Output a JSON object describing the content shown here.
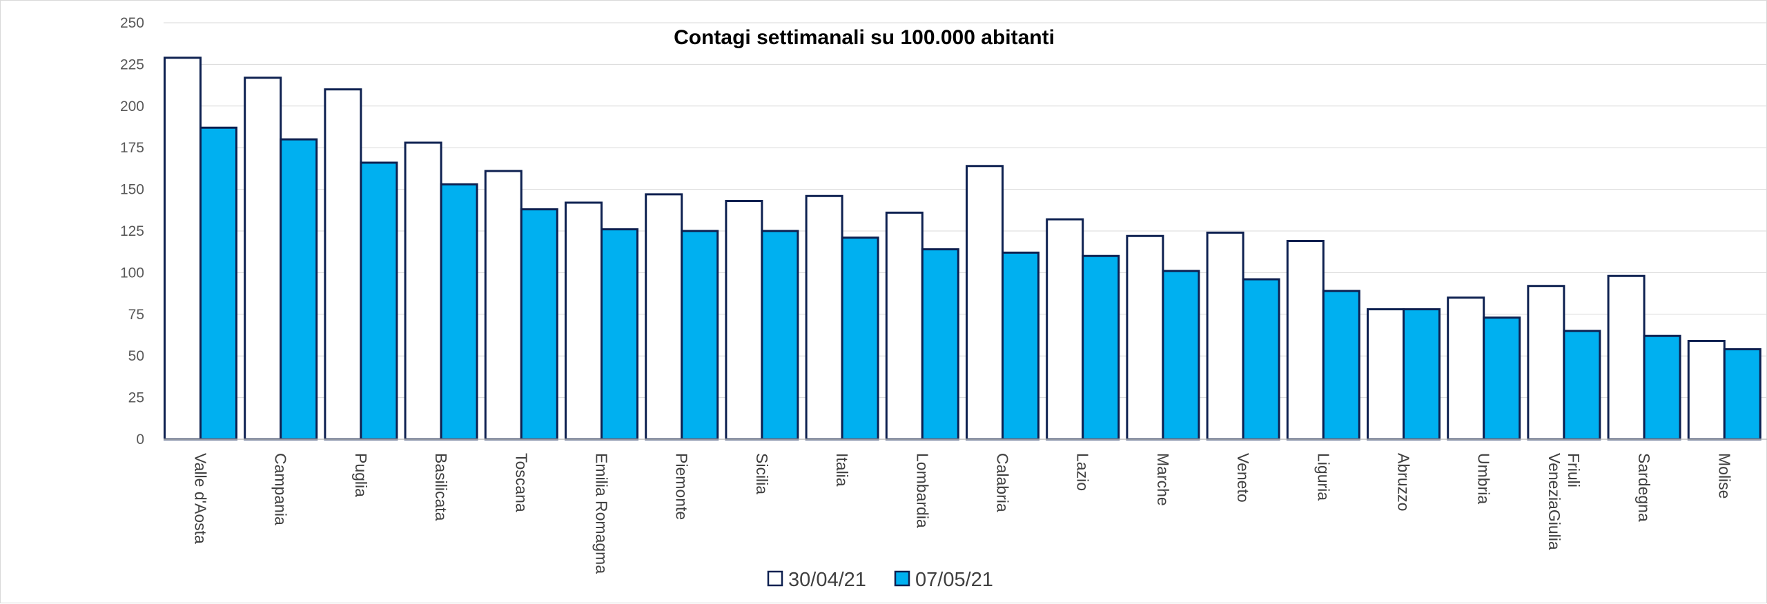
{
  "chart_data": {
    "type": "bar",
    "title": "Contagi settimanali su 100.000 abitanti",
    "xlabel": "",
    "ylabel": "",
    "ylim": [
      0,
      250
    ],
    "yticks": [
      0,
      25,
      50,
      75,
      100,
      125,
      150,
      175,
      200,
      225,
      250
    ],
    "grid": true,
    "legend_position": "bottom",
    "categories": [
      "Valle d'Aosta",
      "Campania",
      "Puglia",
      "Basilicata",
      "Toscana",
      "Emilia Romagma",
      "Piemonte",
      "Sicilia",
      "Italia",
      "Lombardia",
      "Calabria",
      "Lazio",
      "Marche",
      "Veneto",
      "Liguria",
      "Abruzzo",
      "Umbria",
      "Friuli VeneziaGiulia",
      "Sardegna",
      "Molise"
    ],
    "series": [
      {
        "name": "30/04/21",
        "color": "#ffffff",
        "border": "#0d2050",
        "values": [
          229,
          217,
          210,
          178,
          161,
          142,
          147,
          143,
          146,
          136,
          164,
          132,
          122,
          124,
          119,
          78,
          85,
          92,
          98,
          59
        ]
      },
      {
        "name": "07/05/21",
        "color": "#00b0f0",
        "border": "#0d2050",
        "values": [
          187,
          180,
          166,
          153,
          138,
          126,
          125,
          125,
          121,
          114,
          112,
          110,
          101,
          96,
          89,
          78,
          73,
          65,
          62,
          54
        ]
      }
    ]
  }
}
